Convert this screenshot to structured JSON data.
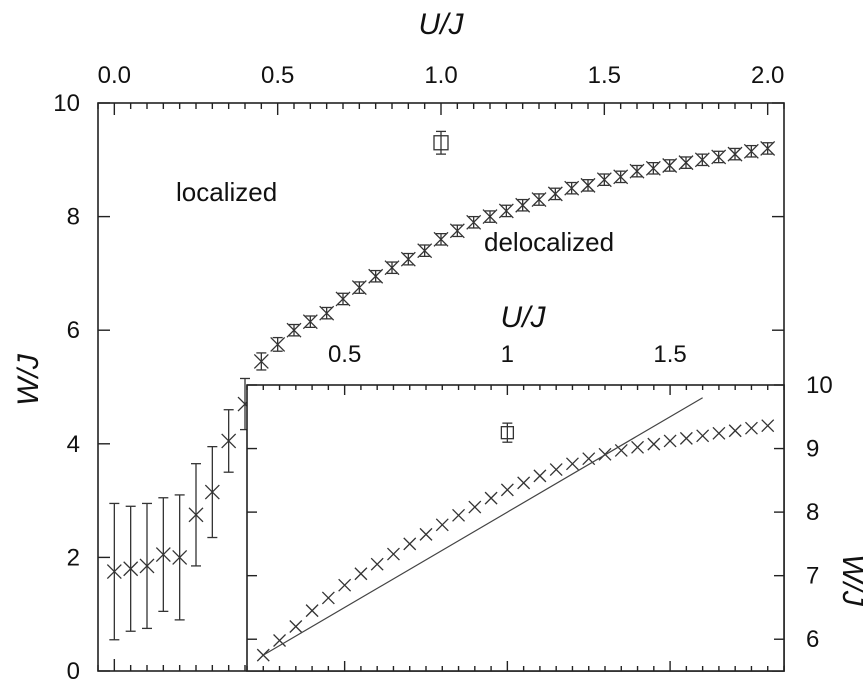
{
  "chart_data": [
    {
      "type": "scatter",
      "title": "",
      "xlabel": "U/J",
      "ylabel": "W/J",
      "x_axis_position": "top",
      "xlim": [
        -0.05,
        2.05
      ],
      "ylim": [
        0,
        10
      ],
      "x_ticks": [
        "0.0",
        "0.5",
        "1.0",
        "1.5",
        "2.0"
      ],
      "x_tick_values": [
        0.0,
        0.5,
        1.0,
        1.5,
        2.0
      ],
      "y_ticks": [
        "0",
        "2",
        "4",
        "6",
        "8",
        "10"
      ],
      "y_tick_values": [
        0,
        2,
        4,
        6,
        8,
        10
      ],
      "annotations": [
        "localized",
        "delocalized"
      ],
      "series": [
        {
          "marker": "x",
          "x": [
            0.0,
            0.05,
            0.1,
            0.15,
            0.2,
            0.25,
            0.3,
            0.35,
            0.4,
            0.45,
            0.5,
            0.55,
            0.6,
            0.65,
            0.7,
            0.75,
            0.8,
            0.85,
            0.9,
            0.95,
            1.0,
            1.05,
            1.1,
            1.15,
            1.2,
            1.25,
            1.3,
            1.35,
            1.4,
            1.45,
            1.5,
            1.55,
            1.6,
            1.65,
            1.7,
            1.75,
            1.8,
            1.85,
            1.9,
            1.95,
            2.0
          ],
          "y": [
            1.75,
            1.8,
            1.85,
            2.05,
            2.0,
            2.75,
            3.15,
            4.05,
            4.7,
            5.45,
            5.75,
            6.0,
            6.15,
            6.3,
            6.55,
            6.75,
            6.95,
            7.1,
            7.25,
            7.4,
            7.6,
            7.75,
            7.9,
            8.0,
            8.1,
            8.2,
            8.3,
            8.4,
            8.5,
            8.55,
            8.65,
            8.7,
            8.8,
            8.85,
            8.9,
            8.95,
            9.0,
            9.05,
            9.1,
            9.15,
            9.2
          ],
          "yerr": [
            1.2,
            1.1,
            1.1,
            1.0,
            1.1,
            0.9,
            0.8,
            0.55,
            0.45,
            0.15,
            0.12,
            0.1,
            0.1,
            0.1,
            0.1,
            0.1,
            0.1,
            0.1,
            0.1,
            0.1,
            0.1,
            0.1,
            0.1,
            0.1,
            0.1,
            0.1,
            0.1,
            0.1,
            0.1,
            0.1,
            0.1,
            0.1,
            0.1,
            0.1,
            0.1,
            0.1,
            0.1,
            0.1,
            0.1,
            0.1,
            0.1
          ]
        },
        {
          "marker": "square",
          "x": [
            1.0
          ],
          "y": [
            9.3
          ],
          "yerr": [
            0.2
          ]
        }
      ]
    },
    {
      "type": "scatter",
      "title": "",
      "xlabel": "U/J",
      "ylabel": "W/J",
      "x_axis_position": "top",
      "y_axis_position": "right",
      "xlim": [
        0.2,
        1.85
      ],
      "ylim": [
        5.5,
        10
      ],
      "x_ticks": [
        "0.5",
        "1",
        "1.5"
      ],
      "x_tick_values": [
        0.5,
        1.0,
        1.5
      ],
      "y_ticks": [
        "6",
        "7",
        "8",
        "9",
        "10"
      ],
      "y_tick_values": [
        6,
        7,
        8,
        9,
        10
      ],
      "series": [
        {
          "marker": "x",
          "x": [
            0.25,
            0.3,
            0.35,
            0.4,
            0.45,
            0.5,
            0.55,
            0.6,
            0.65,
            0.7,
            0.75,
            0.8,
            0.85,
            0.9,
            0.95,
            1.0,
            1.05,
            1.1,
            1.15,
            1.2,
            1.25,
            1.3,
            1.35,
            1.4,
            1.45,
            1.5,
            1.55,
            1.6,
            1.65,
            1.7,
            1.75,
            1.8
          ],
          "y": [
            5.75,
            5.98,
            6.2,
            6.45,
            6.65,
            6.85,
            7.03,
            7.18,
            7.34,
            7.5,
            7.65,
            7.8,
            7.95,
            8.08,
            8.22,
            8.35,
            8.46,
            8.57,
            8.67,
            8.76,
            8.84,
            8.91,
            8.97,
            9.02,
            9.07,
            9.12,
            9.16,
            9.2,
            9.24,
            9.28,
            9.32,
            9.36
          ]
        },
        {
          "marker": "square",
          "x": [
            1.0
          ],
          "y": [
            9.25
          ],
          "yerr": [
            0.15
          ]
        },
        {
          "marker": "line",
          "x": [
            0.25,
            1.6
          ],
          "y": [
            5.75,
            9.8
          ]
        }
      ]
    }
  ]
}
